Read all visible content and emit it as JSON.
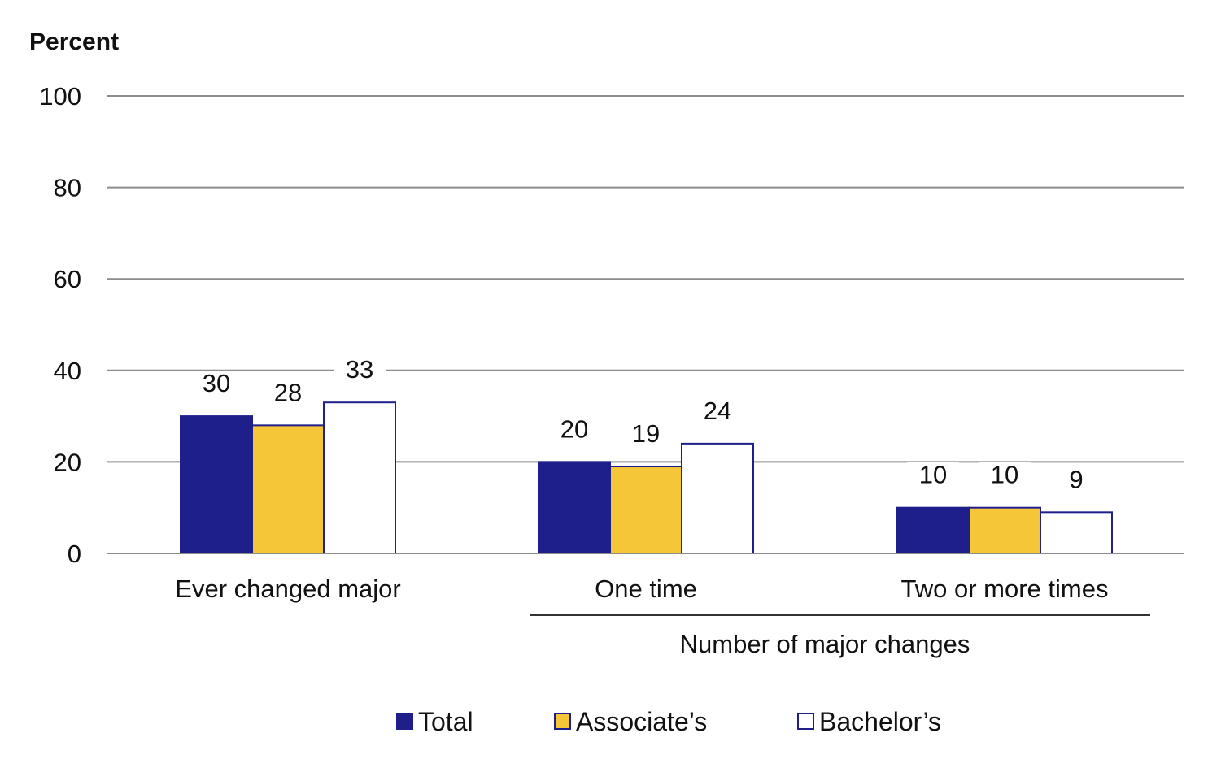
{
  "chart_data": {
    "type": "bar",
    "ylabel": "Percent",
    "ylim": [
      0,
      100
    ],
    "yticks": [
      0,
      20,
      40,
      60,
      80,
      100
    ],
    "categories": [
      "Ever changed major",
      "One time",
      "Two or more times"
    ],
    "group_label": "Number of major changes",
    "series": [
      {
        "name": "Total",
        "values": [
          30,
          20,
          10
        ],
        "display_values": [
          "30",
          "20",
          "10"
        ],
        "fill": "#1f1f8c",
        "stroke": "#1f1f8c"
      },
      {
        "name": "Associate’s",
        "values": [
          28,
          19,
          10
        ],
        "display_values": [
          "28",
          "19",
          "10"
        ],
        "fill": "#f5c637",
        "stroke": "#1f1f8c"
      },
      {
        "name": "Bachelor’s",
        "values": [
          33,
          24,
          9
        ],
        "display_values": [
          "33",
          "24",
          "9"
        ],
        "fill": "#ffffff",
        "stroke": "#1f1f8c"
      }
    ],
    "grid": true,
    "legend_position": "bottom"
  }
}
